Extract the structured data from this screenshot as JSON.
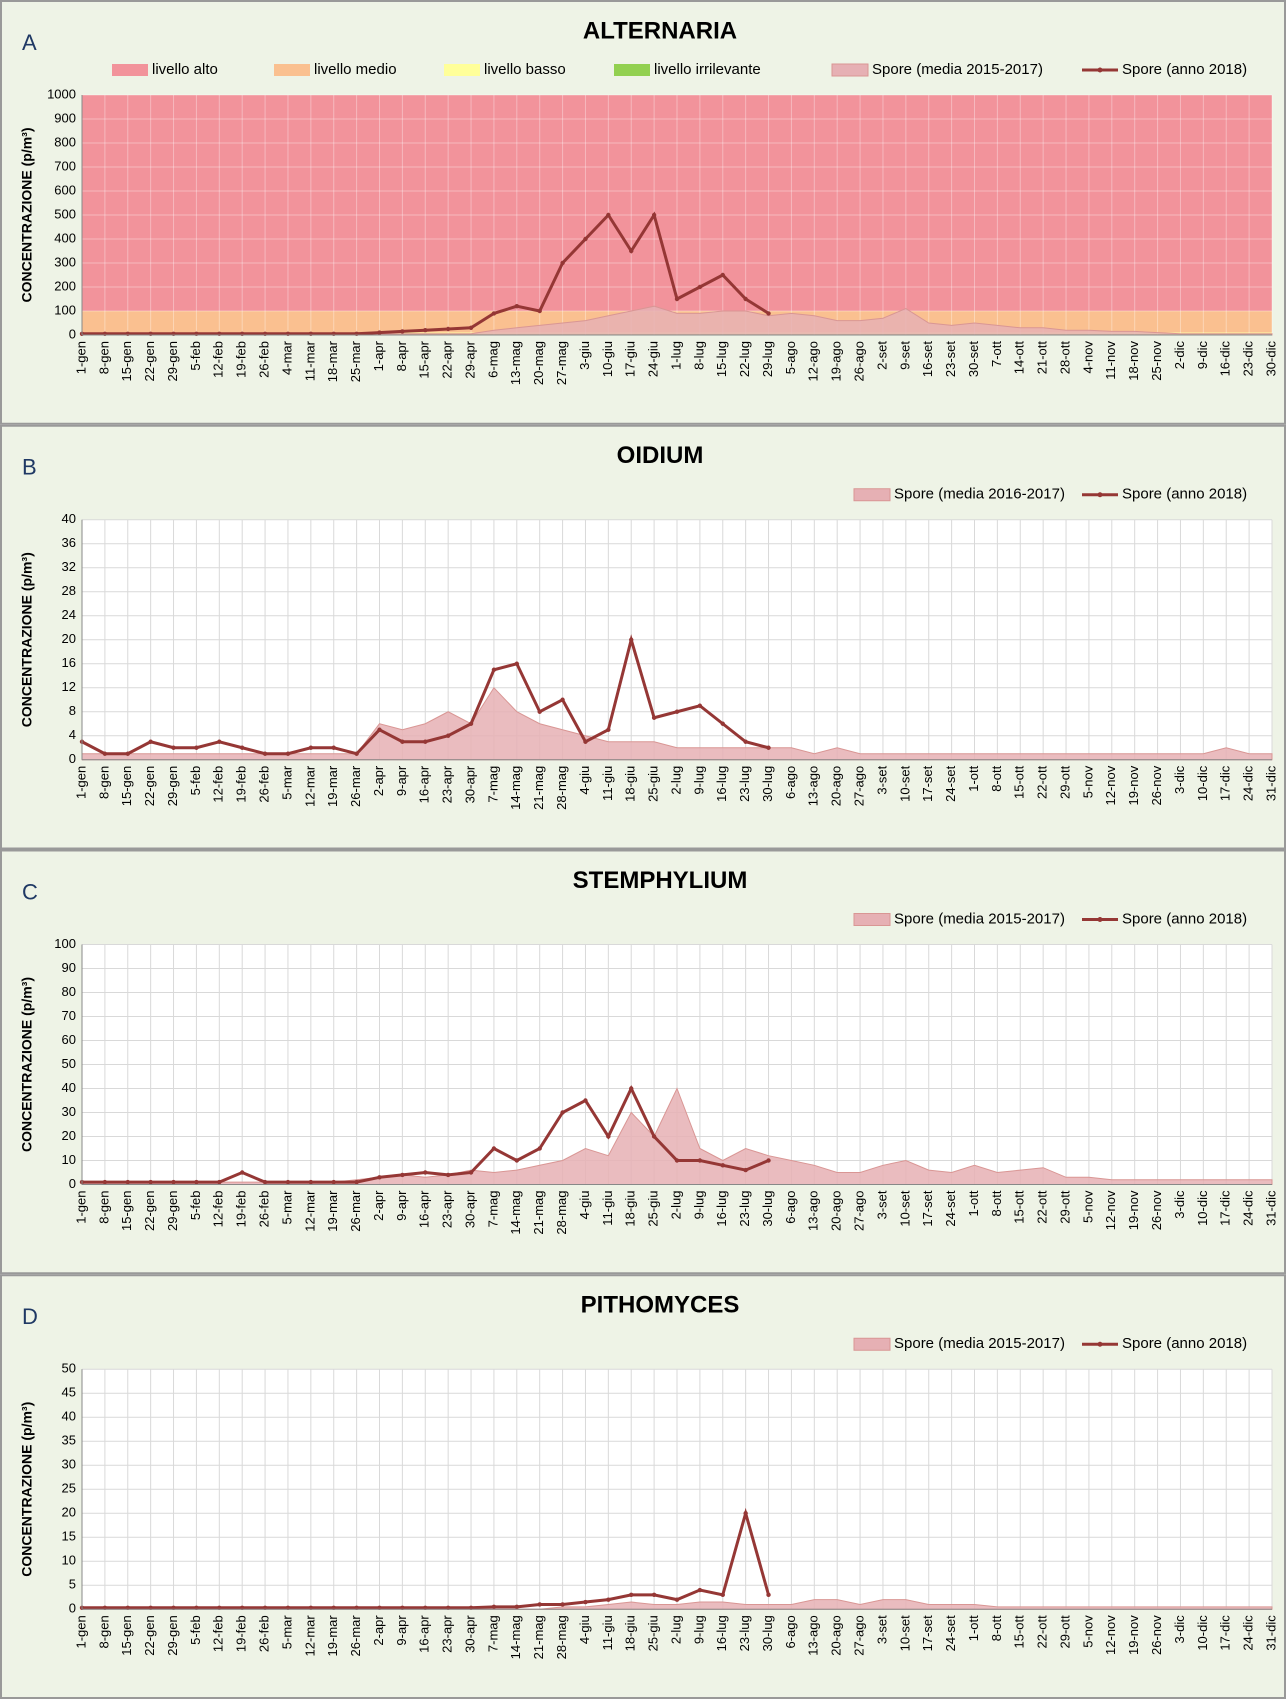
{
  "chart_data": [
    {
      "panel": "A",
      "type": "line",
      "title": "ALTERNARIA",
      "ylabel": "CONCENTRAZIONE (p/m³)",
      "categories": [
        "1-gen",
        "8-gen",
        "15-gen",
        "22-gen",
        "29-gen",
        "5-feb",
        "12-feb",
        "19-feb",
        "26-feb",
        "4-mar",
        "11-mar",
        "18-mar",
        "25-mar",
        "1-apr",
        "8-apr",
        "15-apr",
        "22-apr",
        "29-apr",
        "6-mag",
        "13-mag",
        "20-mag",
        "27-mag",
        "3-giu",
        "10-giu",
        "17-giu",
        "24-giu",
        "1-lug",
        "8-lug",
        "15-lug",
        "22-lug",
        "29-lug",
        "5-ago",
        "12-ago",
        "19-ago",
        "26-ago",
        "2-set",
        "9-set",
        "16-set",
        "23-set",
        "30-set",
        "7-ott",
        "14-ott",
        "21-ott",
        "28-ott",
        "4-nov",
        "11-nov",
        "18-nov",
        "25-nov",
        "2-dic",
        "9-dic",
        "16-dic",
        "23-dic",
        "30-dic"
      ],
      "bands": [
        {
          "name": "livello alto",
          "color": "#f2939b",
          "from": 100,
          "to": 1000
        },
        {
          "name": "livello medio",
          "color": "#fac090",
          "from": 10,
          "to": 100
        },
        {
          "name": "livello basso",
          "color": "#ffff99",
          "from": 5,
          "to": 10
        },
        {
          "name": "livello irrilevante",
          "color": "#92d050",
          "from": 0,
          "to": 5
        }
      ],
      "series": [
        {
          "name": "Spore (media 2015-2017)",
          "color": "#e6b0b4",
          "kind": "area",
          "values": [
            5,
            5,
            5,
            5,
            5,
            5,
            5,
            5,
            5,
            5,
            5,
            5,
            5,
            5,
            5,
            5,
            5,
            5,
            20,
            30,
            40,
            50,
            60,
            80,
            100,
            120,
            90,
            90,
            100,
            100,
            80,
            90,
            80,
            60,
            60,
            70,
            110,
            50,
            40,
            50,
            40,
            30,
            30,
            20,
            20,
            15,
            15,
            10,
            5,
            5,
            5,
            5,
            5
          ]
        },
        {
          "name": "Spore (anno 2018)",
          "color": "#953735",
          "kind": "line",
          "values": [
            5,
            5,
            5,
            5,
            5,
            5,
            5,
            5,
            5,
            5,
            5,
            5,
            5,
            10,
            15,
            20,
            25,
            30,
            90,
            120,
            100,
            300,
            400,
            500,
            350,
            500,
            150,
            200,
            250,
            150,
            90,
            null,
            null,
            null,
            null,
            null,
            null,
            null,
            null,
            null,
            null,
            null,
            null,
            null,
            null,
            null,
            null,
            null,
            null,
            null,
            null,
            null,
            null
          ]
        }
      ],
      "ylim": [
        0,
        1000
      ],
      "yticks": [
        0,
        100,
        200,
        300,
        400,
        500,
        600,
        700,
        800,
        900,
        1000
      ],
      "grid": true,
      "legend": "top"
    },
    {
      "panel": "B",
      "type": "line",
      "title": "OIDIUM",
      "ylabel": "CONCENTRAZIONE (p/m³)",
      "categories": [
        "1-gen",
        "8-gen",
        "15-gen",
        "22-gen",
        "29-gen",
        "5-feb",
        "12-feb",
        "19-feb",
        "26-feb",
        "5-mar",
        "12-mar",
        "19-mar",
        "26-mar",
        "2-apr",
        "9-apr",
        "16-apr",
        "23-apr",
        "30-apr",
        "7-mag",
        "14-mag",
        "21-mag",
        "28-mag",
        "4-giu",
        "11-giu",
        "18-giu",
        "25-giu",
        "2-lug",
        "9-lug",
        "16-lug",
        "23-lug",
        "30-lug",
        "6-ago",
        "13-ago",
        "20-ago",
        "27-ago",
        "3-set",
        "10-set",
        "17-set",
        "24-set",
        "1-ott",
        "8-ott",
        "15-ott",
        "22-ott",
        "29-ott",
        "5-nov",
        "12-nov",
        "19-nov",
        "26-nov",
        "3-dic",
        "10-dic",
        "17-dic",
        "24-dic",
        "31-dic"
      ],
      "series": [
        {
          "name": "Spore (media 2016-2017)",
          "color": "#e6b0b4",
          "kind": "area",
          "values": [
            1,
            1,
            1,
            1,
            1,
            1,
            1,
            1,
            1,
            1,
            1,
            1,
            1,
            6,
            5,
            6,
            8,
            6,
            12,
            8,
            6,
            5,
            4,
            3,
            3,
            3,
            2,
            2,
            2,
            2,
            2,
            2,
            1,
            2,
            1,
            1,
            1,
            1,
            1,
            1,
            1,
            1,
            1,
            1,
            1,
            1,
            1,
            1,
            1,
            1,
            2,
            1,
            1
          ]
        },
        {
          "name": "Spore (anno 2018)",
          "color": "#953735",
          "kind": "line",
          "values": [
            3,
            1,
            1,
            3,
            2,
            2,
            3,
            2,
            1,
            1,
            2,
            2,
            1,
            5,
            3,
            3,
            4,
            6,
            15,
            16,
            8,
            10,
            3,
            5,
            20,
            7,
            8,
            9,
            6,
            3,
            2,
            null,
            null,
            null,
            null,
            null,
            null,
            null,
            null,
            null,
            null,
            null,
            null,
            null,
            null,
            null,
            null,
            null,
            null,
            null,
            null,
            null,
            null
          ]
        }
      ],
      "ylim": [
        0,
        40
      ],
      "yticks": [
        0,
        4,
        8,
        12,
        16,
        20,
        24,
        28,
        32,
        36,
        40
      ],
      "grid": true,
      "legend": "top-right"
    },
    {
      "panel": "C",
      "type": "line",
      "title": "STEMPHYLIUM",
      "ylabel": "CONCENTRAZIONE (p/m³)",
      "categories": [
        "1-gen",
        "8-gen",
        "15-gen",
        "22-gen",
        "29-gen",
        "5-feb",
        "12-feb",
        "19-feb",
        "26-feb",
        "5-mar",
        "12-mar",
        "19-mar",
        "26-mar",
        "2-apr",
        "9-apr",
        "16-apr",
        "23-apr",
        "30-apr",
        "7-mag",
        "14-mag",
        "21-mag",
        "28-mag",
        "4-giu",
        "11-giu",
        "18-giu",
        "25-giu",
        "2-lug",
        "9-lug",
        "16-lug",
        "23-lug",
        "30-lug",
        "6-ago",
        "13-ago",
        "20-ago",
        "27-ago",
        "3-set",
        "10-set",
        "17-set",
        "24-set",
        "1-ott",
        "8-ott",
        "15-ott",
        "22-ott",
        "29-ott",
        "5-nov",
        "12-nov",
        "19-nov",
        "26-nov",
        "3-dic",
        "10-dic",
        "17-dic",
        "24-dic",
        "31-dic"
      ],
      "series": [
        {
          "name": "Spore (media 2015-2017)",
          "color": "#e6b0b4",
          "kind": "area",
          "values": [
            1,
            1,
            1,
            1,
            1,
            1,
            1,
            1,
            1,
            1,
            1,
            1,
            2,
            3,
            4,
            3,
            4,
            6,
            5,
            6,
            8,
            10,
            15,
            12,
            30,
            20,
            40,
            15,
            10,
            15,
            12,
            10,
            8,
            5,
            5,
            8,
            10,
            6,
            5,
            8,
            5,
            6,
            7,
            3,
            3,
            2,
            2,
            2,
            2,
            2,
            2,
            2,
            2
          ]
        },
        {
          "name": "Spore (anno 2018)",
          "color": "#953735",
          "kind": "line",
          "values": [
            1,
            1,
            1,
            1,
            1,
            1,
            1,
            5,
            1,
            1,
            1,
            1,
            1,
            3,
            4,
            5,
            4,
            5,
            15,
            10,
            15,
            30,
            35,
            20,
            40,
            20,
            10,
            10,
            8,
            6,
            10,
            null,
            null,
            null,
            null,
            null,
            null,
            null,
            null,
            null,
            null,
            null,
            null,
            null,
            null,
            null,
            null,
            null,
            null,
            null,
            null,
            null,
            null
          ]
        }
      ],
      "ylim": [
        0,
        100
      ],
      "yticks": [
        0,
        10,
        20,
        30,
        40,
        50,
        60,
        70,
        80,
        90,
        100
      ],
      "grid": true,
      "legend": "top-right"
    },
    {
      "panel": "D",
      "type": "line",
      "title": "PITHOMYCES",
      "ylabel": "CONCENTRAZIONE (p/m³)",
      "categories": [
        "1-gen",
        "8-gen",
        "15-gen",
        "22-gen",
        "29-gen",
        "5-feb",
        "12-feb",
        "19-feb",
        "26-feb",
        "5-mar",
        "12-mar",
        "19-mar",
        "26-mar",
        "2-apr",
        "9-apr",
        "16-apr",
        "23-apr",
        "30-apr",
        "7-mag",
        "14-mag",
        "21-mag",
        "28-mag",
        "4-giu",
        "11-giu",
        "18-giu",
        "25-giu",
        "2-lug",
        "9-lug",
        "16-lug",
        "23-lug",
        "30-lug",
        "6-ago",
        "13-ago",
        "20-ago",
        "27-ago",
        "3-set",
        "10-set",
        "17-set",
        "24-set",
        "1-ott",
        "8-ott",
        "15-ott",
        "22-ott",
        "29-ott",
        "5-nov",
        "12-nov",
        "19-nov",
        "26-nov",
        "3-dic",
        "10-dic",
        "17-dic",
        "24-dic",
        "31-dic"
      ],
      "series": [
        {
          "name": "Spore (media 2015-2017)",
          "color": "#e6b0b4",
          "kind": "area",
          "values": [
            0,
            0,
            0,
            0,
            0,
            0,
            0,
            0,
            0,
            0,
            0,
            0,
            0,
            0,
            0,
            0,
            0,
            0,
            0,
            0,
            0,
            0.5,
            0.5,
            1,
            1.5,
            1,
            1,
            1.5,
            1.5,
            1,
            1,
            1,
            2,
            2,
            1,
            2,
            2,
            1,
            1,
            1,
            0.5,
            0.5,
            0.5,
            0.5,
            0.5,
            0.5,
            0.5,
            0.5,
            0.5,
            0.5,
            0.5,
            0.5,
            0.5
          ]
        },
        {
          "name": "Spore (anno 2018)",
          "color": "#953735",
          "kind": "line",
          "values": [
            0.3,
            0.3,
            0.3,
            0.3,
            0.3,
            0.3,
            0.3,
            0.3,
            0.3,
            0.3,
            0.3,
            0.3,
            0.3,
            0.3,
            0.3,
            0.3,
            0.3,
            0.3,
            0.5,
            0.5,
            1,
            1,
            1.5,
            2,
            3,
            3,
            2,
            4,
            3,
            20,
            3,
            null,
            null,
            null,
            null,
            null,
            null,
            null,
            null,
            null,
            null,
            null,
            null,
            null,
            null,
            null,
            null,
            null,
            null,
            null,
            null,
            null,
            null
          ]
        }
      ],
      "ylim": [
        0,
        50
      ],
      "yticks": [
        0,
        5,
        10,
        15,
        20,
        25,
        30,
        35,
        40,
        45,
        50
      ],
      "grid": true,
      "legend": "top-right"
    }
  ]
}
